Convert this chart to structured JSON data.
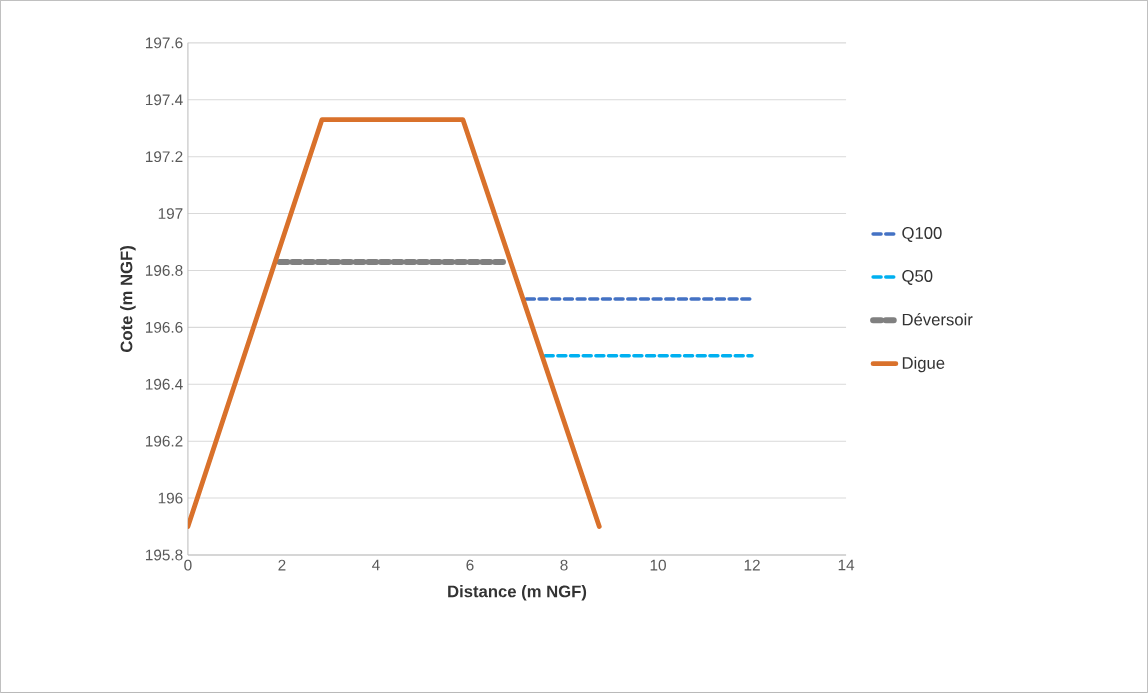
{
  "chart_data": {
    "type": "line",
    "xlabel": "Distance (m NGF)",
    "ylabel": "Cote (m NGF)",
    "xlim": [
      0,
      14
    ],
    "xticks": [
      0,
      2,
      4,
      6,
      8,
      10,
      12,
      14
    ],
    "ylim": [
      195.8,
      197.6
    ],
    "yticks": [
      195.8,
      196,
      196.2,
      196.4,
      196.6,
      196.8,
      197,
      197.2,
      197.4,
      197.6
    ],
    "grid": "y",
    "legend": "right",
    "marker": "none",
    "series": [
      {
        "name": "Q100",
        "color": "#4472c4",
        "line_style": "dashed",
        "x": [
          7.2,
          12
        ],
        "values": [
          196.7,
          196.7
        ]
      },
      {
        "name": "Q50",
        "color": "#00b0f0",
        "line_style": "dashed",
        "x": [
          7.6,
          12
        ],
        "values": [
          196.5,
          196.5
        ]
      },
      {
        "name": "Déversoir",
        "color": "#808080",
        "line_style": "dashed",
        "x": [
          1.95,
          6.8
        ],
        "values": [
          196.83,
          196.83
        ]
      },
      {
        "name": "Digue",
        "color": "#d9712b",
        "line_style": "solid",
        "x": [
          0,
          2.85,
          5.85,
          8.75
        ],
        "values": [
          195.9,
          197.33,
          197.33,
          195.9
        ]
      }
    ]
  }
}
